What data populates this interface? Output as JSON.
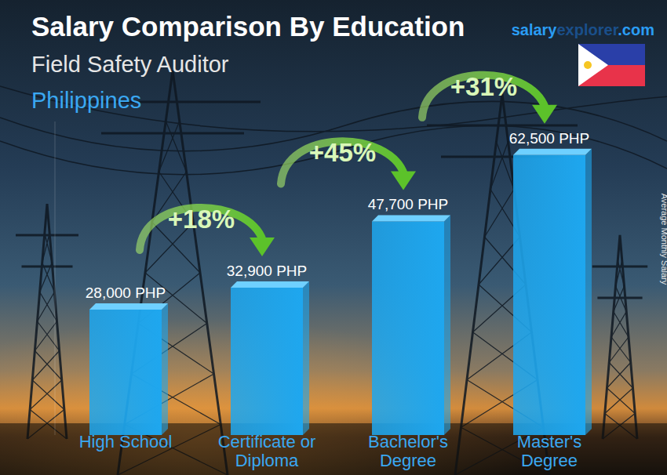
{
  "chart_data": {
    "type": "bar",
    "title": "Salary Comparison By Education",
    "subtitle": "Field Safety Auditor",
    "location": "Philippines",
    "source": [
      "salary",
      "explorer",
      ".com"
    ],
    "y_label": "Average Monthly Salary",
    "categories": [
      "High School",
      "Certificate or Diploma",
      "Bachelor's Degree",
      "Master's Degree"
    ],
    "values": [
      28000,
      32900,
      47700,
      62500
    ],
    "value_labels": [
      "28,000 PHP",
      "32,900 PHP",
      "47,700 PHP",
      "62,500 PHP"
    ],
    "annotations": [
      "+18%",
      "+45%",
      "+31%"
    ],
    "color": "#1ea7ef",
    "ylim": [
      0,
      70000
    ],
    "data_labels": true,
    "tick_labels": "x",
    "grid": false
  }
}
